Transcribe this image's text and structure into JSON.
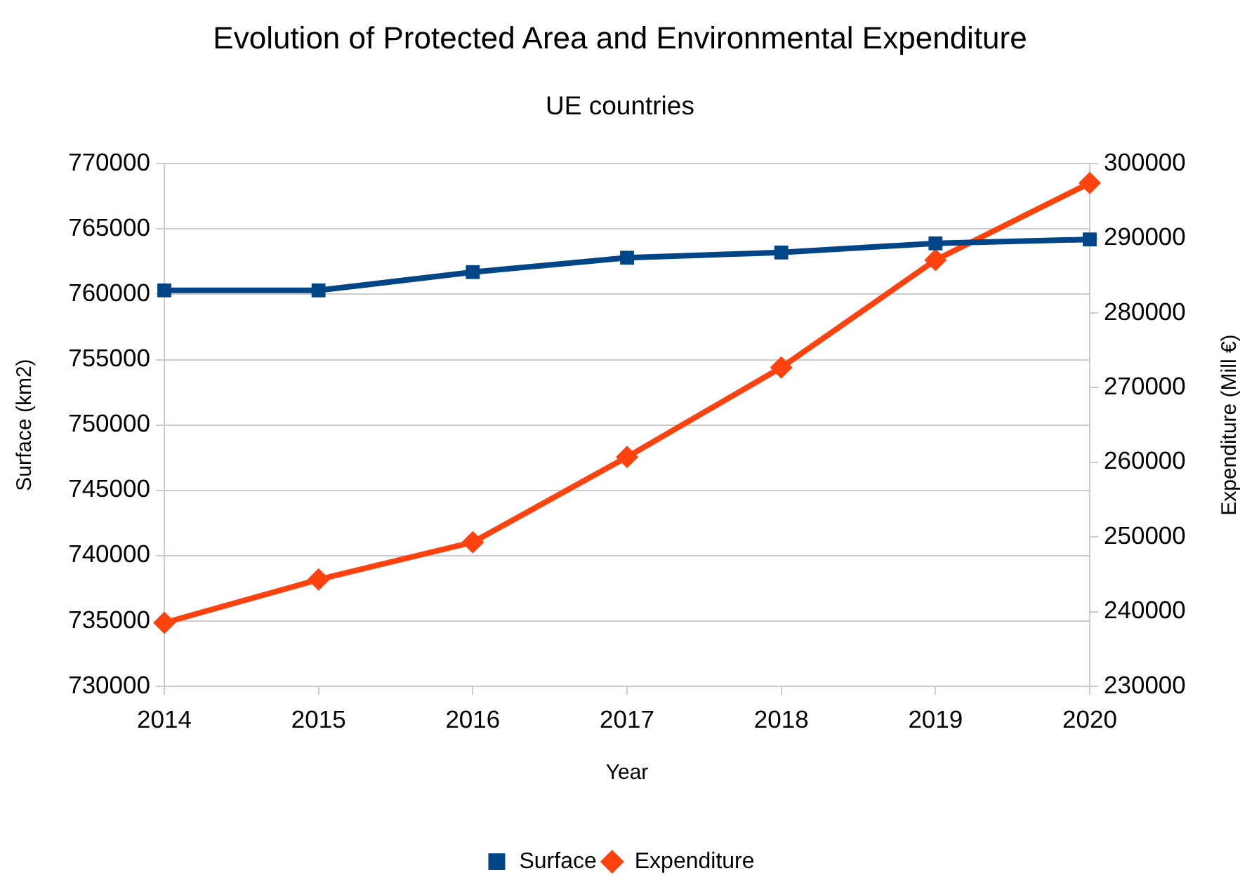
{
  "chart_data": {
    "type": "line",
    "title": "Evolution of Protected Area and Environmental Expenditure",
    "subtitle": "UE countries",
    "xlabel": "Year",
    "ylabel": "Surface (km2)",
    "y2label": "Expenditure (Mill €)",
    "categories": [
      "2014",
      "2015",
      "2016",
      "2017",
      "2018",
      "2019",
      "2020"
    ],
    "series": [
      {
        "name": "Surface",
        "color": "#004586",
        "marker": "square",
        "values": [
          760300,
          760300,
          761700,
          762800,
          763200,
          763900,
          764200
        ]
      },
      {
        "name": "Expenditure",
        "color": "#ff420e",
        "marker": "diamond",
        "axis": "y2",
        "values": [
          238500,
          244300,
          249300,
          260700,
          272700,
          287100,
          297400
        ]
      }
    ],
    "ylim": [
      730000,
      770000
    ],
    "yticks": [
      730000,
      735000,
      740000,
      745000,
      750000,
      755000,
      760000,
      765000,
      770000
    ],
    "y2lim": [
      230000,
      300000
    ],
    "y2ticks": [
      230000,
      240000,
      250000,
      260000,
      270000,
      280000,
      290000,
      300000
    ],
    "grid": "y",
    "legend": "bottom",
    "line_style": "solid"
  }
}
